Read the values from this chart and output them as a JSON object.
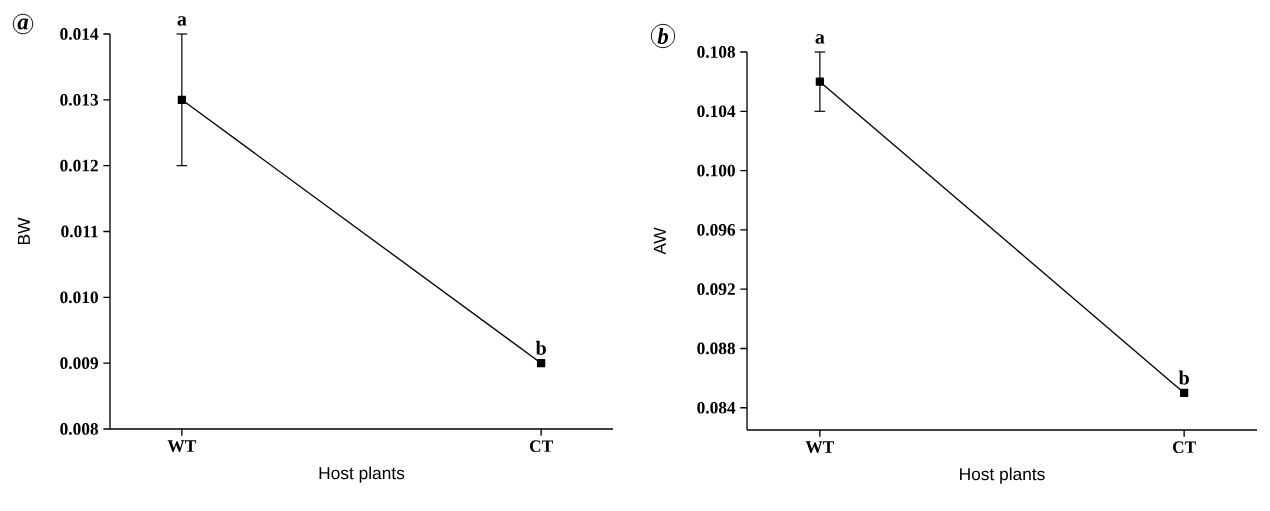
{
  "chart_data": [
    {
      "type": "line",
      "title": "a",
      "xlabel": "Host plants",
      "ylabel": "BW",
      "categories": [
        "WT",
        "CT"
      ],
      "values": [
        0.013,
        0.009
      ],
      "errors": [
        0.001,
        null
      ],
      "color": "#000000",
      "marker": "square",
      "line_style": "solid",
      "ylim": [
        0.008,
        0.014
      ],
      "yticks": [
        0.008,
        0.009,
        {
          "value": 0.01,
          "label": "0.010"
        },
        0.011,
        0.012,
        0.013,
        0.014
      ],
      "annotations": [
        {
          "text": "a",
          "x": "WT",
          "y": 0.014
        },
        {
          "text": "b",
          "x": "CT",
          "y": 0.009
        }
      ]
    },
    {
      "type": "line",
      "title": "b",
      "xlabel": "Host plants",
      "ylabel": "AW",
      "categories": [
        "WT",
        "CT"
      ],
      "values": [
        0.106,
        0.085
      ],
      "errors": [
        0.002,
        null
      ],
      "color": "#000000",
      "marker": "square",
      "line_style": "solid",
      "ylim": [
        0.0825,
        0.108
      ],
      "yticks": [
        0.084,
        0.088,
        0.092,
        0.096,
        {
          "value": 0.1,
          "label": "0.100"
        },
        0.104,
        0.108
      ],
      "annotations": [
        {
          "text": "a",
          "x": "WT",
          "y": 0.108
        },
        {
          "text": "b",
          "x": "CT",
          "y": 0.085
        }
      ]
    }
  ]
}
